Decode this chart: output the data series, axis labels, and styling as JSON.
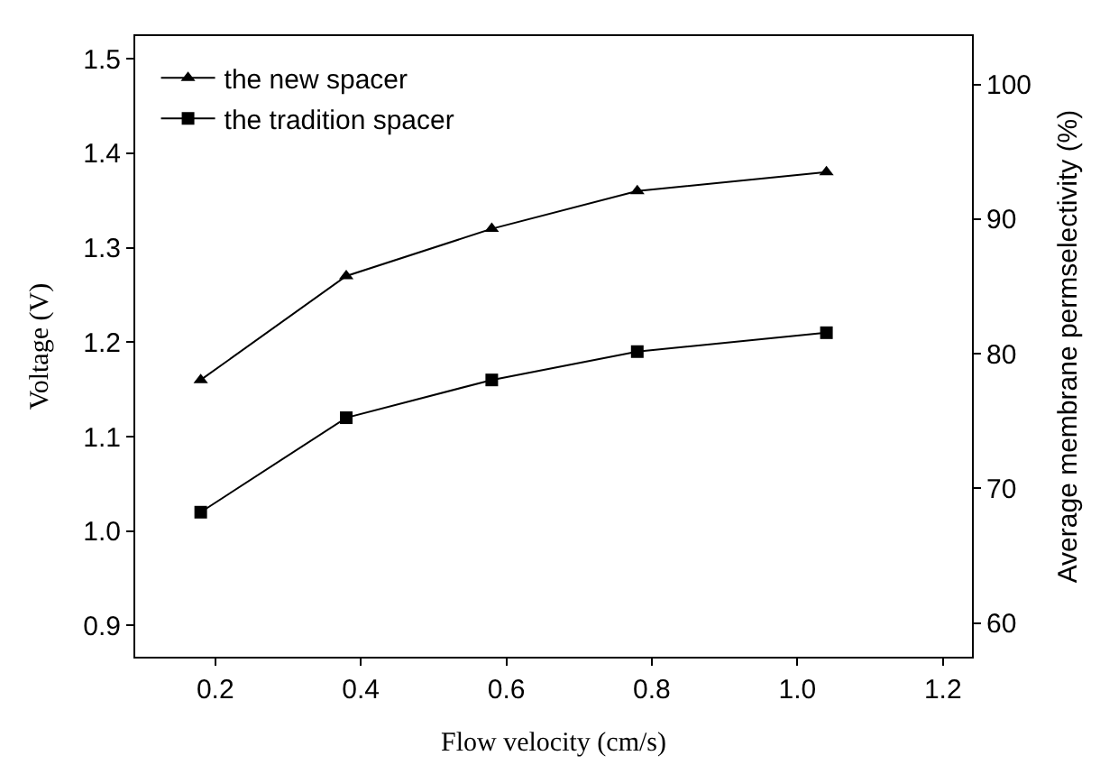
{
  "chart_data": {
    "type": "line",
    "xlabel": "Flow velocity (cm/s)",
    "ylabel": "Voltage (V)",
    "y2label": "Average membrane permselectivity (%)",
    "x": [
      0.18,
      0.38,
      0.58,
      0.78,
      1.04
    ],
    "series": [
      {
        "name": "the new spacer",
        "color": "#000000",
        "marker": "triangle",
        "values": [
          1.16,
          1.27,
          1.32,
          1.36,
          1.38
        ]
      },
      {
        "name": "the tradition spacer",
        "color": "#000000",
        "marker": "square",
        "values": [
          1.02,
          1.12,
          1.16,
          1.19,
          1.21
        ]
      }
    ],
    "xlim": [
      0.09,
      1.24
    ],
    "xticks": [
      0.2,
      0.4,
      0.6,
      0.8,
      {
        "value": 1,
        "label": "1.0"
      },
      1.2
    ],
    "ylim": [
      0.867,
      1.524
    ],
    "yticks": [
      0.9,
      {
        "value": 1,
        "label": "1.0"
      },
      1.1,
      1.2,
      1.3,
      1.4,
      1.5
    ],
    "y2lim": [
      57.5,
      103.6
    ],
    "y2ticks": [
      60,
      70,
      80,
      90,
      100
    ],
    "legend": "top left",
    "line_style": "solid"
  }
}
